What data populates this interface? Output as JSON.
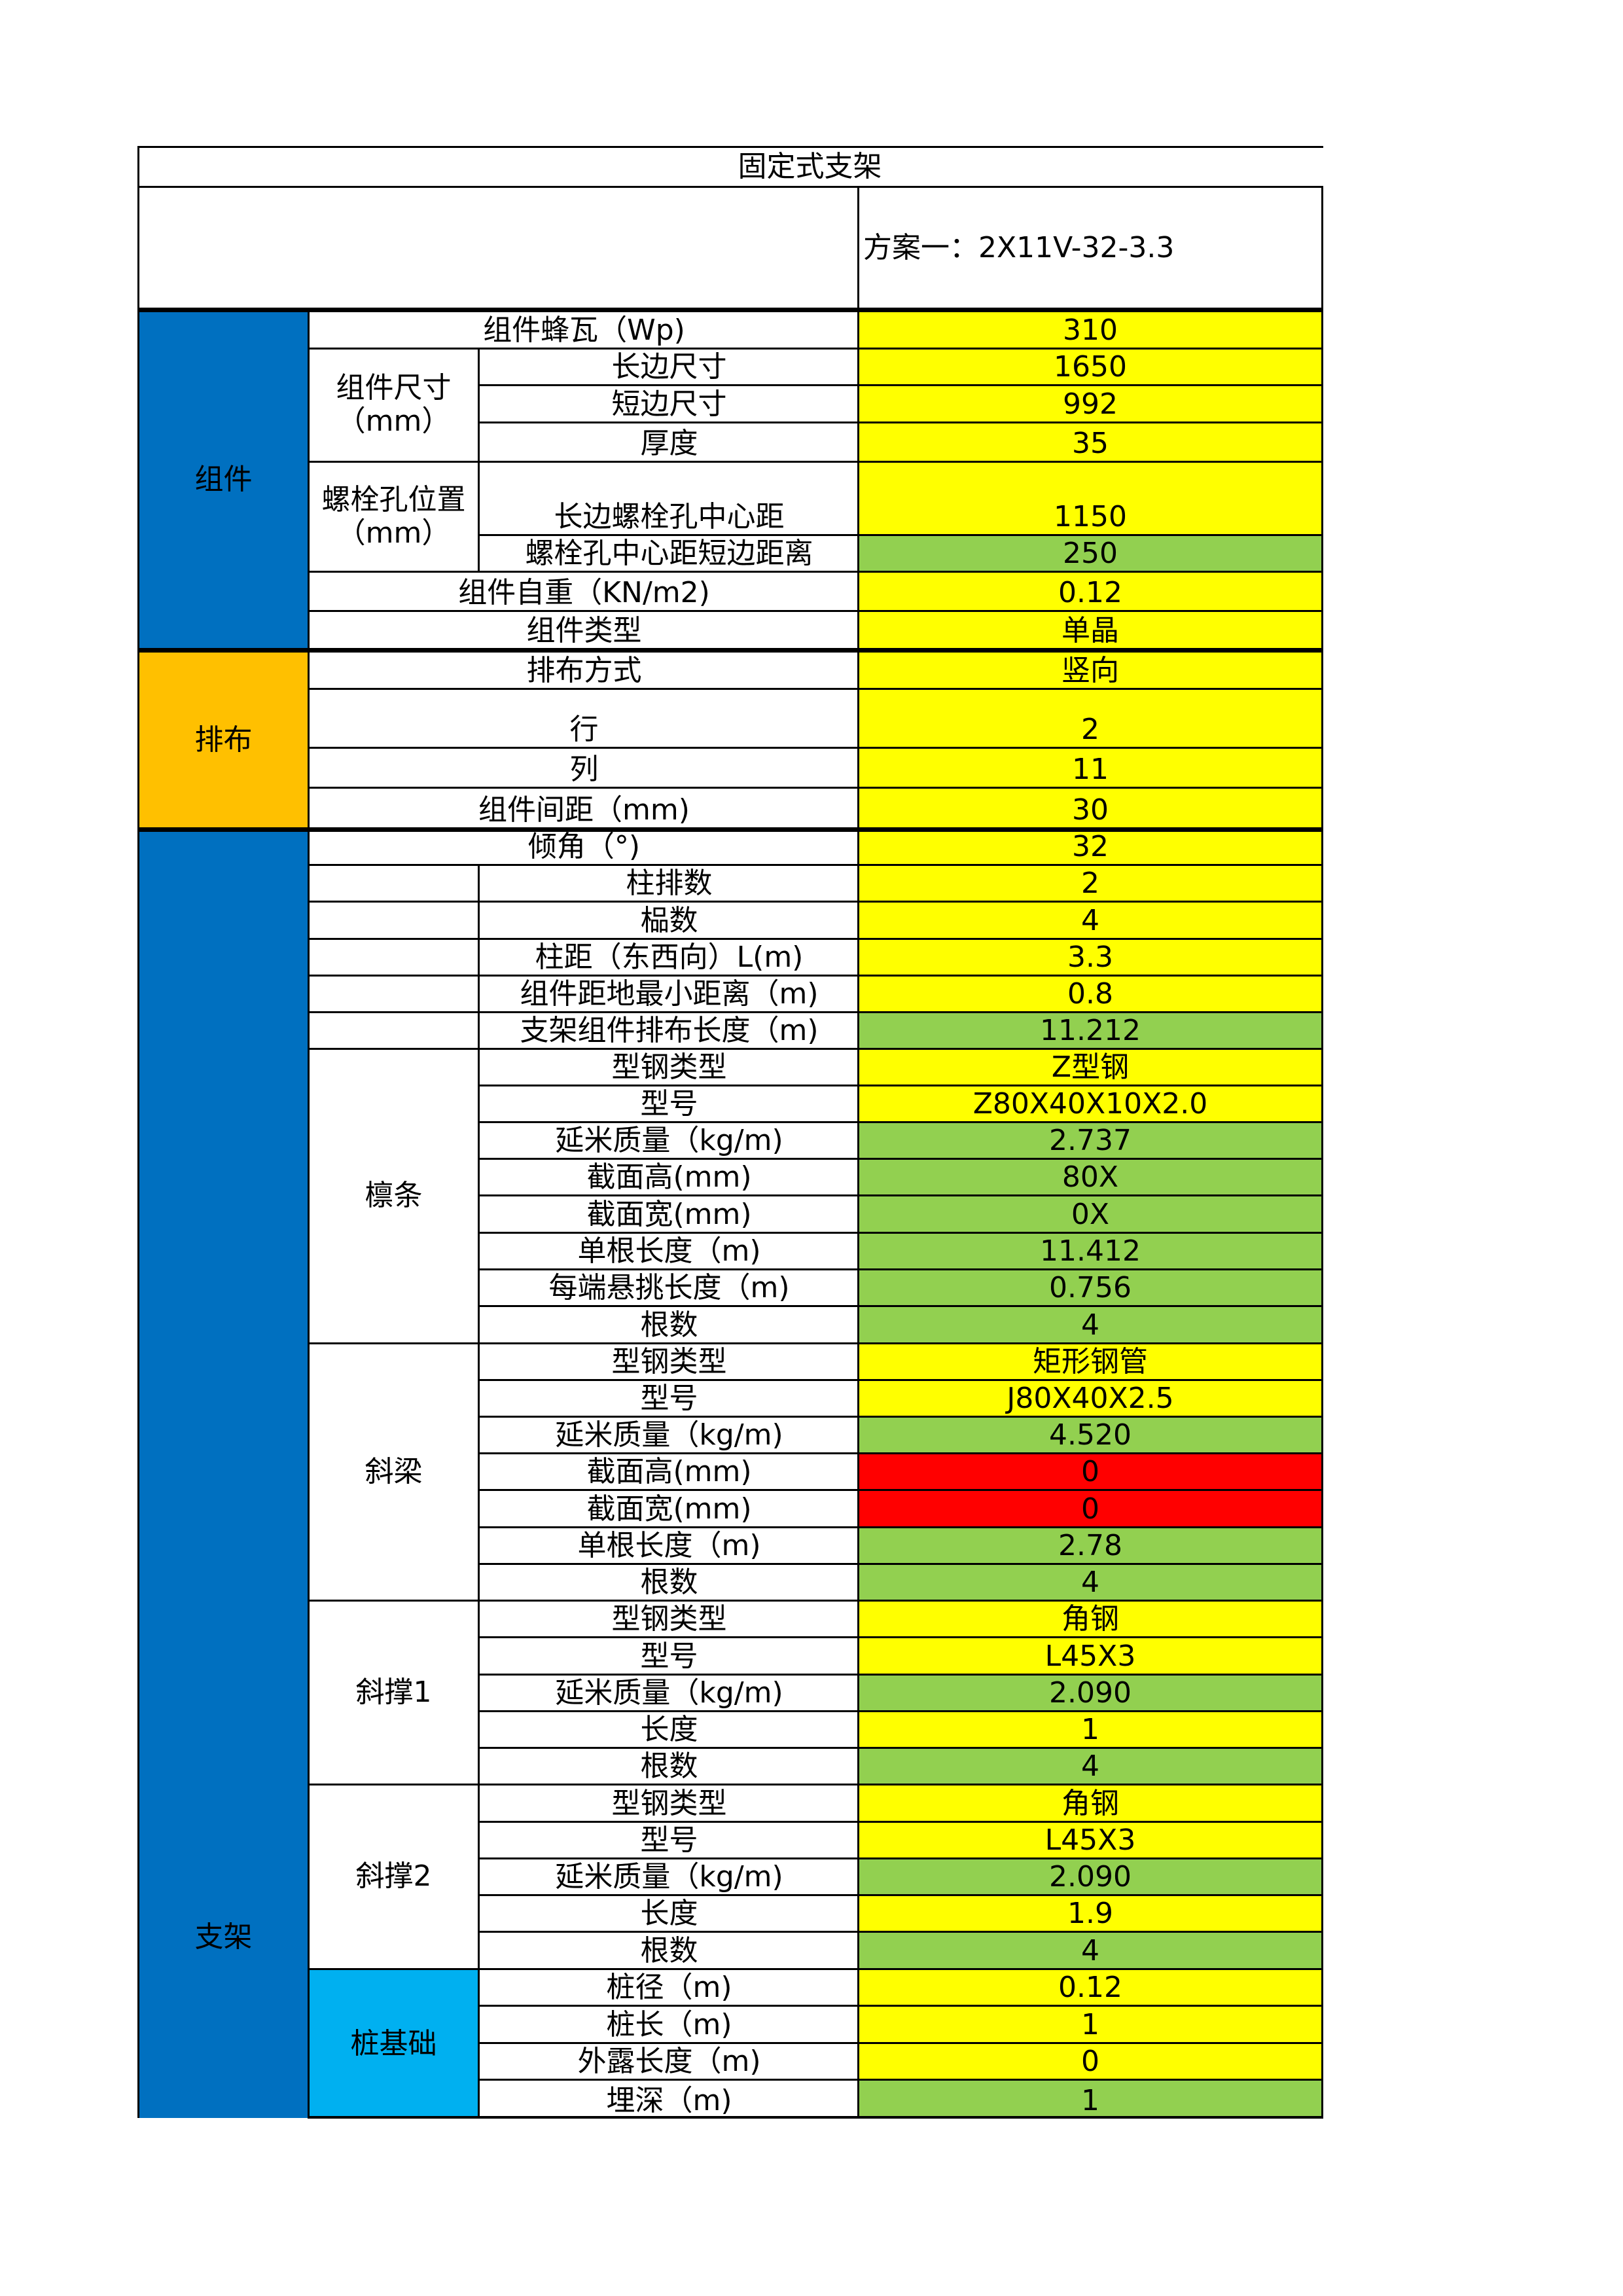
{
  "header": {
    "title": "固定式支架",
    "scheme": "方案一：2X11V-32-3.3"
  },
  "groups": {
    "module": "组件",
    "layout": "排布",
    "support": "支架"
  },
  "subgroups": {
    "module_size": "组件尺寸（mm）",
    "bolt_pos": "螺栓孔位置（mm）",
    "purlin": "檩条",
    "beam": "斜梁",
    "brace1": "斜撑1",
    "brace2": "斜撑2",
    "pile": "桩基础"
  },
  "rows": [
    {
      "label": "组件蜂瓦（Wp)",
      "value": "310"
    },
    {
      "label": "长边尺寸",
      "value": "1650"
    },
    {
      "label": "短边尺寸",
      "value": "992"
    },
    {
      "label": "厚度",
      "value": "35"
    },
    {
      "label": "长边螺栓孔中心距",
      "value": "1150"
    },
    {
      "label": "螺栓孔中心距短边距离",
      "value": "250"
    },
    {
      "label": "组件自重（KN/m2)",
      "value": "0.12"
    },
    {
      "label": "组件类型",
      "value": "单晶"
    },
    {
      "label": "排布方式",
      "value": "竖向"
    },
    {
      "label": "行",
      "value": "2"
    },
    {
      "label": "列",
      "value": "11"
    },
    {
      "label": "组件间距（mm)",
      "value": "30"
    },
    {
      "label": "倾角（°)",
      "value": "32"
    },
    {
      "label": "柱排数",
      "value": "2"
    },
    {
      "label": "榀数",
      "value": "4"
    },
    {
      "label": "柱距（东西向）L(m)",
      "value": "3.3"
    },
    {
      "label": "组件距地最小距离（m)",
      "value": "0.8"
    },
    {
      "label": "支架组件排布长度（m)",
      "value": "11.212"
    },
    {
      "label": "型钢类型",
      "value": "Z型钢"
    },
    {
      "label": "型号",
      "value": "Z80X40X10X2.0"
    },
    {
      "label": "延米质量（kg/m)",
      "value": "2.737"
    },
    {
      "label": "截面高(mm)",
      "value": "80X"
    },
    {
      "label": "截面宽(mm)",
      "value": "0X"
    },
    {
      "label": "单根长度（m)",
      "value": "11.412"
    },
    {
      "label": "每端悬挑长度（m)",
      "value": "0.756"
    },
    {
      "label": "根数",
      "value": "4"
    },
    {
      "label": "型钢类型",
      "value": "矩形钢管"
    },
    {
      "label": "型号",
      "value": "J80X40X2.5"
    },
    {
      "label": "延米质量（kg/m)",
      "value": "4.520"
    },
    {
      "label": "截面高(mm)",
      "value": "0"
    },
    {
      "label": "截面宽(mm)",
      "value": "0"
    },
    {
      "label": "单根长度（m)",
      "value": "2.78"
    },
    {
      "label": "根数",
      "value": "4"
    },
    {
      "label": "型钢类型",
      "value": "角钢"
    },
    {
      "label": "型号",
      "value": "L45X3"
    },
    {
      "label": "延米质量（kg/m)",
      "value": "2.090"
    },
    {
      "label": "长度",
      "value": "1"
    },
    {
      "label": "根数",
      "value": "4"
    },
    {
      "label": "型钢类型",
      "value": "角钢"
    },
    {
      "label": "型号",
      "value": "L45X3"
    },
    {
      "label": "延米质量（kg/m)",
      "value": "2.090"
    },
    {
      "label": "长度",
      "value": "1.9"
    },
    {
      "label": "根数",
      "value": "4"
    },
    {
      "label": "桩径（m)",
      "value": "0.12"
    },
    {
      "label": "桩长（m)",
      "value": "1"
    },
    {
      "label": "外露长度（m)",
      "value": "0"
    },
    {
      "label": "埋深（m)",
      "value": "1"
    }
  ],
  "colors": {
    "yellow": "#ffff00",
    "green": "#92d050",
    "red": "#ff0000",
    "blue": "#0070c0",
    "orange": "#ffc000",
    "cyan": "#00b0f0"
  }
}
